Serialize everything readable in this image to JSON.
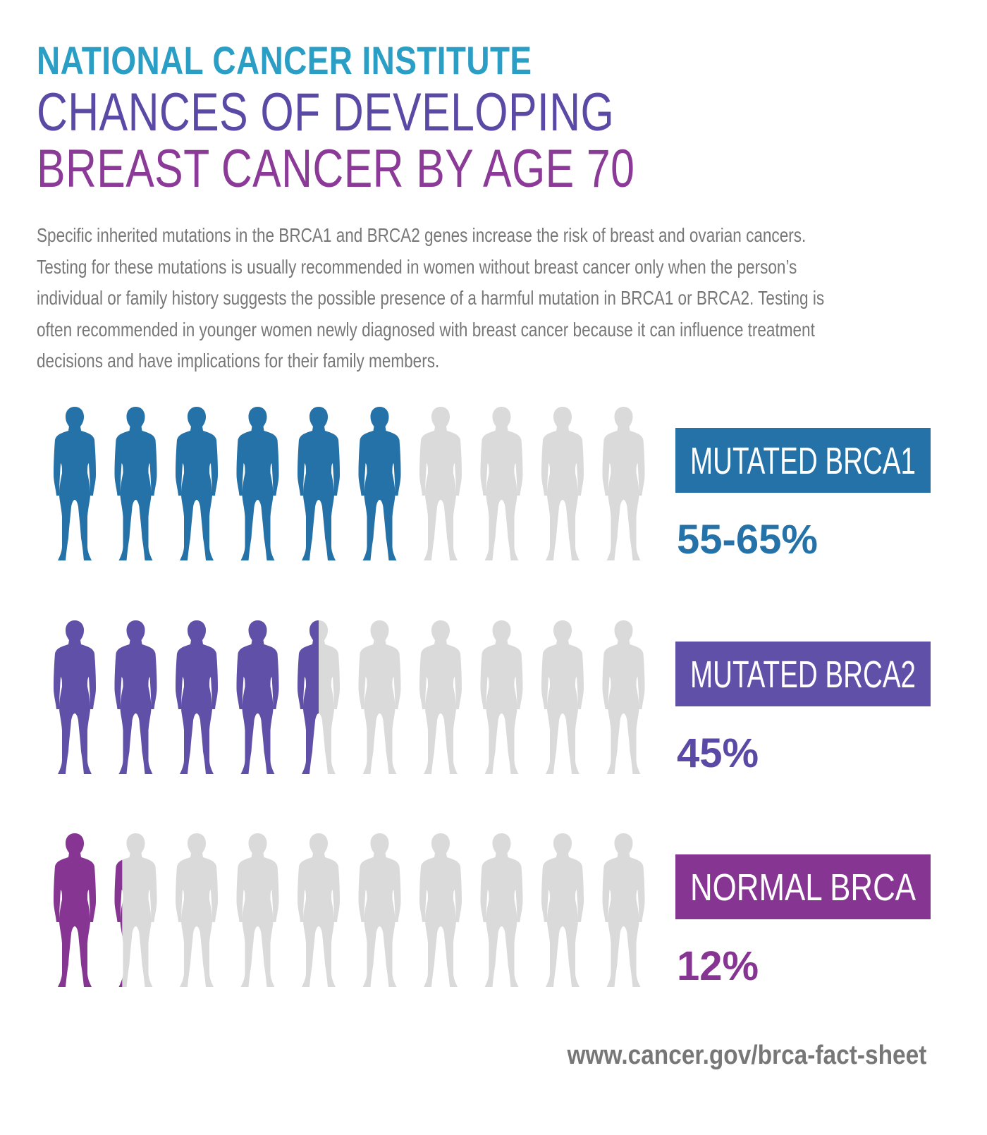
{
  "header": {
    "line1": "NATIONAL CANCER INSTITUTE",
    "line2": "CHANCES OF DEVELOPING",
    "line3": "BREAST CANCER BY AGE 70"
  },
  "description": [
    "Specific inherited mutations in the BRCA1 and BRCA2 genes increase the risk of breast and ovarian cancers.",
    "Testing for these mutations is usually recommended in women without breast cancer only when the person’s",
    "individual or family history suggests the possible presence of a harmful mutation in BRCA1 or BRCA2. Testing is",
    "often recommended in younger women newly diagnosed with breast cancer because it can influence treatment",
    "decisions and have implications for their family members."
  ],
  "footer": {
    "url": "www.cancer.gov/brca-fact-sheet"
  },
  "chart_data": {
    "type": "bar",
    "unit": "%",
    "total_figures": 10,
    "empty_color": "#dadada",
    "series": [
      {
        "name": "MUTATED BRCA1",
        "value_label": "55-65%",
        "value": 60,
        "color": "#2472a8",
        "label_color": "#2472a8"
      },
      {
        "name": "MUTATED BRCA2",
        "value_label": "45%",
        "value": 45,
        "color": "#6150a8",
        "label_color": "#5b4aa5"
      },
      {
        "name": "NORMAL BRCA",
        "value_label": "12%",
        "value": 12,
        "color": "#863592",
        "label_color": "#863592"
      }
    ]
  }
}
